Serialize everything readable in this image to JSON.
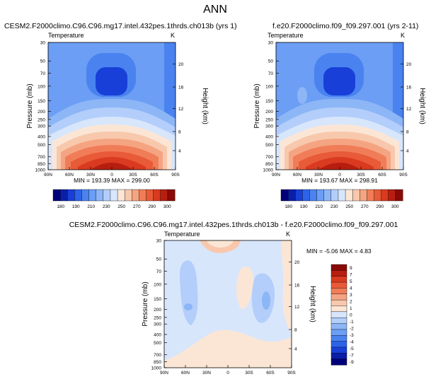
{
  "title": "ANN",
  "colors": {
    "temp_scale": [
      "#00007a",
      "#0a1fa8",
      "#1840d8",
      "#2d63e8",
      "#4a83ef",
      "#6b9ef4",
      "#8db6f7",
      "#b3cefa",
      "#d8e6fc",
      "#fbe6d6",
      "#f8c8ad",
      "#f5a482",
      "#f07d58",
      "#e85a38",
      "#d93a20",
      "#b81e10",
      "#8a0a06"
    ],
    "diff_scale": [
      "#00007a",
      "#0a1fa8",
      "#1840d8",
      "#2d63e8",
      "#4a83ef",
      "#6b9ef4",
      "#8db6f7",
      "#b3cefa",
      "#d8e6fc",
      "#fbe6d6",
      "#f8c8ad",
      "#f5a482",
      "#f07d58",
      "#e85a38",
      "#d93a20",
      "#b81e10",
      "#8a0a06"
    ]
  },
  "chart_data": [
    {
      "type": "heatmap",
      "title": "CESM2.F2000climo.C96.C96.mg17.intel.432pes.1thrds.ch013b (yrs 1)",
      "subtitle_left": "Temperature",
      "subtitle_right": "K",
      "ylabel": "Pressure (mb)",
      "ylabel_right": "Height (km)",
      "x_ticks": [
        "90N",
        "60N",
        "30N",
        "0",
        "30S",
        "60S",
        "90S"
      ],
      "y_ticks": [
        "30",
        "50",
        "70",
        "100",
        "150",
        "200",
        "250",
        "300",
        "400",
        "500",
        "700",
        "850",
        "1000"
      ],
      "y2_ticks": [
        "20",
        "16",
        "12",
        "8",
        "4"
      ],
      "stats": "MIN = 193.39   MAX = 299.00",
      "colorbar_labels": [
        "180",
        "190",
        "210",
        "230",
        "250",
        "270",
        "290",
        "300"
      ],
      "min": 193.39,
      "max": 299.0
    },
    {
      "type": "heatmap",
      "title": "f.e20.F2000climo.f09_f09.297.001 (yrs 2-11)",
      "subtitle_left": "Temperature",
      "subtitle_right": "K",
      "ylabel": "Pressure (mb)",
      "ylabel_right": "Height (km)",
      "x_ticks": [
        "90N",
        "60N",
        "30N",
        "0",
        "30S",
        "60S",
        "90S"
      ],
      "y_ticks": [
        "30",
        "50",
        "70",
        "100",
        "150",
        "200",
        "250",
        "300",
        "400",
        "500",
        "700",
        "850",
        "1000"
      ],
      "y2_ticks": [
        "20",
        "16",
        "12",
        "8",
        "4"
      ],
      "stats": "MIN = 193.67   MAX = 298.91",
      "colorbar_labels": [
        "180",
        "190",
        "210",
        "230",
        "250",
        "270",
        "290",
        "300"
      ],
      "min": 193.67,
      "max": 298.91
    },
    {
      "type": "heatmap",
      "title": "CESM2.F2000climo.C96.C96.mg17.intel.432pes.1thrds.ch013b - f.e20.F2000climo.f09_f09.297.001",
      "subtitle_left": "Temperature",
      "subtitle_right": "K",
      "ylabel": "Pressure (mb)",
      "ylabel_right": "Height (km)",
      "x_ticks": [
        "90N",
        "60N",
        "30N",
        "0",
        "30S",
        "60S",
        "90S"
      ],
      "y_ticks": [
        "30",
        "50",
        "70",
        "100",
        "150",
        "200",
        "250",
        "300",
        "400",
        "500",
        "700",
        "850",
        "1000"
      ],
      "y2_ticks": [
        "20",
        "16",
        "12",
        "8",
        "4"
      ],
      "stats": "MIN = -5.06   MAX =   4.83",
      "colorbar_labels": [
        "9",
        "7",
        "5",
        "4",
        "3",
        "2",
        "1",
        "0",
        "-1",
        "-2",
        "-3",
        "-4",
        "-5",
        "-7",
        "-9"
      ],
      "min": -5.06,
      "max": 4.83
    }
  ]
}
